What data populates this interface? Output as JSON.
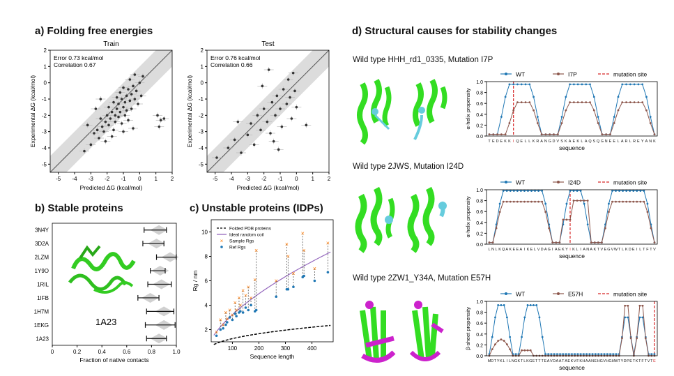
{
  "panels": {
    "a": {
      "title": "a) Folding free energies"
    },
    "b": {
      "title": "b) Stable proteins"
    },
    "c": {
      "title": "c) Unstable proteins (IDPs)"
    },
    "d": {
      "title": "d) Structural causes for stability changes"
    }
  },
  "colors": {
    "wt": "#1f77b4",
    "mut": "#8c564b",
    "mut_line": "#d62728",
    "struct_green": "#33dd22",
    "struct_cyan": "#66ccdd",
    "struct_magenta": "#cc22cc",
    "sample": "#ff7f0e",
    "ideal": "#9467bd"
  },
  "chart_data": [
    {
      "id": "a-train",
      "type": "scatter",
      "title": "Train",
      "xlabel": "Predicted ΔG (kcal/mol)",
      "ylabel": "Experimental ΔG (kcal/mol)",
      "xlim": [
        -5.5,
        2
      ],
      "ylim": [
        -5.5,
        2
      ],
      "xticks": [
        -5,
        -4,
        -3,
        -2,
        -1,
        0,
        1,
        2
      ],
      "yticks": [
        -5,
        -4,
        -3,
        -2,
        -1,
        0,
        1,
        2
      ],
      "annotations": [
        "Error 0.73 kcal/mol",
        "Correlation 0.67"
      ],
      "band_halfwidth": 1,
      "points": [
        [
          -3.4,
          -4.2
        ],
        [
          -3.0,
          -3.8
        ],
        [
          -2.8,
          -3.1
        ],
        [
          -2.6,
          -2.9
        ],
        [
          -2.5,
          -3.4
        ],
        [
          -2.4,
          -2.2
        ],
        [
          -2.3,
          -2.7
        ],
        [
          -2.2,
          -3.0
        ],
        [
          -2.1,
          -2.4
        ],
        [
          -2.0,
          -2.0
        ],
        [
          -1.9,
          -2.6
        ],
        [
          -1.9,
          -1.5
        ],
        [
          -1.8,
          -2.2
        ],
        [
          -1.7,
          -1.8
        ],
        [
          -1.6,
          -2.9
        ],
        [
          -1.6,
          -1.2
        ],
        [
          -1.5,
          -2.0
        ],
        [
          -1.5,
          -2.4
        ],
        [
          -1.4,
          -1.6
        ],
        [
          -1.4,
          -0.9
        ],
        [
          -1.3,
          -2.1
        ],
        [
          -1.3,
          -1.3
        ],
        [
          -1.2,
          -1.8
        ],
        [
          -1.2,
          -0.6
        ],
        [
          -1.1,
          -2.5
        ],
        [
          -1.1,
          -1.0
        ],
        [
          -1.0,
          -1.5
        ],
        [
          -1.0,
          -0.3
        ],
        [
          -0.9,
          -2.0
        ],
        [
          -0.9,
          -1.2
        ],
        [
          -0.8,
          -0.8
        ],
        [
          -0.8,
          -1.7
        ],
        [
          -0.7,
          -0.4
        ],
        [
          -0.7,
          -2.3
        ],
        [
          -0.6,
          -1.1
        ],
        [
          -0.6,
          0.2
        ],
        [
          -0.5,
          -0.7
        ],
        [
          -0.5,
          -1.6
        ],
        [
          -0.4,
          -0.2
        ],
        [
          -0.3,
          -1.0
        ],
        [
          -0.3,
          0.5
        ],
        [
          -0.2,
          -0.5
        ],
        [
          -0.1,
          -1.3
        ],
        [
          0.0,
          0.0
        ],
        [
          0.1,
          -0.8
        ],
        [
          0.2,
          0.4
        ],
        [
          -2.7,
          -1.6
        ],
        [
          -2.1,
          -3.6
        ],
        [
          -1.7,
          -3.3
        ],
        [
          -3.2,
          -2.6
        ],
        [
          -0.4,
          -2.8
        ],
        [
          -1.0,
          -3.0
        ],
        [
          -2.4,
          -1.0
        ],
        [
          1.1,
          -2.0
        ],
        [
          1.3,
          -2.3
        ],
        [
          1.2,
          -2.7
        ],
        [
          1.5,
          -2.2
        ]
      ]
    },
    {
      "id": "a-test",
      "type": "scatter",
      "title": "Test",
      "xlabel": "Predicted ΔG (kcal/mol)",
      "ylabel": "Experimental ΔG (kcal/mol)",
      "xlim": [
        -5.5,
        2
      ],
      "ylim": [
        -5.5,
        2
      ],
      "xticks": [
        -5,
        -4,
        -3,
        -2,
        -1,
        0,
        1,
        2
      ],
      "yticks": [
        -5,
        -4,
        -3,
        -2,
        -1,
        0,
        1,
        2
      ],
      "annotations": [
        "Error 0.76 kcal/mol",
        "Correlation 0.66"
      ],
      "band_halfwidth": 1,
      "points": [
        [
          -4.9,
          -4.6
        ],
        [
          -4.2,
          -4.0
        ],
        [
          -3.8,
          -3.5
        ],
        [
          -3.4,
          -4.3
        ],
        [
          -3.0,
          -3.2
        ],
        [
          -2.8,
          -2.5
        ],
        [
          -2.6,
          -3.8
        ],
        [
          -2.4,
          -2.0
        ],
        [
          -2.2,
          -2.9
        ],
        [
          -2.0,
          -1.6
        ],
        [
          -1.8,
          -2.4
        ],
        [
          -1.6,
          -3.1
        ],
        [
          -1.5,
          -1.2
        ],
        [
          -1.3,
          -2.0
        ],
        [
          -1.2,
          -0.8
        ],
        [
          -1.0,
          -1.6
        ],
        [
          -0.9,
          -2.7
        ],
        [
          -0.8,
          -0.4
        ],
        [
          -0.6,
          -1.3
        ],
        [
          -0.5,
          0.2
        ],
        [
          -0.4,
          -0.9
        ],
        [
          -0.3,
          -2.2
        ],
        [
          -0.2,
          0.6
        ],
        [
          -0.1,
          -0.5
        ],
        [
          0.0,
          -1.5
        ],
        [
          -2.1,
          -0.2
        ],
        [
          -1.7,
          0.8
        ],
        [
          -1.4,
          -3.6
        ],
        [
          0.6,
          -2.6
        ],
        [
          -3.6,
          -2.4
        ],
        [
          -1.1,
          -4.1
        ]
      ]
    },
    {
      "id": "b",
      "type": "bar",
      "title": "",
      "xlabel": "Fraction of native contacts",
      "ylabel": "",
      "xlim": [
        0,
        1.0
      ],
      "xticks": [
        0,
        0.2,
        0.4,
        0.6,
        0.8,
        1.0
      ],
      "categories": [
        "3N4Y",
        "3D2A",
        "2LZM",
        "1Y9O",
        "1RIL",
        "1IFB",
        "1H7M",
        "1EKG",
        "1A23"
      ],
      "ranges": [
        [
          0.74,
          0.92
        ],
        [
          0.73,
          0.9
        ],
        [
          0.84,
          1.0
        ],
        [
          0.79,
          0.91
        ],
        [
          0.77,
          0.96
        ],
        [
          0.69,
          0.86
        ],
        [
          0.76,
          0.98
        ],
        [
          0.75,
          0.99
        ],
        [
          0.76,
          0.92
        ]
      ],
      "means": [
        0.86,
        0.84,
        0.95,
        0.87,
        0.88,
        0.79,
        0.9,
        0.9,
        0.86
      ],
      "structure_label": "1A23"
    },
    {
      "id": "c",
      "type": "scatter",
      "title": "",
      "xlabel": "Sequence length",
      "ylabel": "Rg / nm",
      "xlim": [
        20,
        480
      ],
      "ylim": [
        1,
        11
      ],
      "xticks": [
        100,
        200,
        300,
        400
      ],
      "yticks": [
        2,
        4,
        6,
        8,
        10
      ],
      "legend": [
        "Folded PDB proteins",
        "Ideal random coil",
        "Sample Rgs",
        "Ref Rgs"
      ],
      "legend_position": "top-left",
      "pairs": [
        [
          40,
          1.8,
          1.5
        ],
        [
          55,
          2.8,
          2.0
        ],
        [
          65,
          2.4,
          2.1
        ],
        [
          75,
          3.4,
          2.4
        ],
        [
          80,
          2.9,
          2.6
        ],
        [
          90,
          3.6,
          3.0
        ],
        [
          100,
          3.2,
          2.8
        ],
        [
          110,
          4.2,
          3.3
        ],
        [
          115,
          3.6,
          3.1
        ],
        [
          125,
          4.6,
          3.4
        ],
        [
          130,
          4.0,
          3.5
        ],
        [
          140,
          5.2,
          3.4
        ],
        [
          150,
          4.8,
          3.8
        ],
        [
          160,
          5.5,
          3.6
        ],
        [
          170,
          4.6,
          4.0
        ],
        [
          185,
          6.1,
          3.5
        ],
        [
          190,
          8.5,
          3.6
        ],
        [
          265,
          6.0,
          4.7
        ],
        [
          305,
          9.0,
          5.3
        ],
        [
          310,
          8.0,
          5.3
        ],
        [
          330,
          6.6,
          5.5
        ],
        [
          365,
          9.9,
          6.3
        ],
        [
          370,
          8.5,
          6.4
        ],
        [
          410,
          7.0,
          6.0
        ],
        [
          460,
          9.1,
          6.7
        ]
      ]
    },
    {
      "id": "d1",
      "type": "line",
      "title": "",
      "xlabel": "sequence",
      "ylabel": "α-helix propensity",
      "ylim": [
        0,
        1.0
      ],
      "yticks": [
        0.0,
        0.2,
        0.4,
        0.6,
        0.8,
        1.0
      ],
      "legend": [
        "WT",
        "I7P",
        "mutation site"
      ],
      "legend_position": "top",
      "sequence_labels": "TEDEKKIQELLKRANGDVSKAEKLAQSQGNEELARLREYANK",
      "mutation_index": 6
    },
    {
      "id": "d2",
      "type": "line",
      "title": "",
      "xlabel": "sequence",
      "ylabel": "α-helix propensity",
      "ylim": [
        0,
        1.0
      ],
      "yticks": [
        0.0,
        0.2,
        0.4,
        0.6,
        0.8,
        1.0
      ],
      "legend": [
        "WT",
        "I24D",
        "mutation site"
      ],
      "legend_position": "top",
      "sequence_labels": "LNLKQAKEEAIKELVDAGIAEKYIKLIANAKTVEGVWTLKDEILTFTV",
      "mutation_index": 23
    },
    {
      "id": "d3",
      "type": "line",
      "title": "",
      "xlabel": "sequence",
      "ylabel": "β-sheet propensity",
      "ylim": [
        0,
        1.0
      ],
      "yticks": [
        0.0,
        0.2,
        0.4,
        0.6,
        0.8,
        1.0
      ],
      "legend": [
        "WT",
        "E57H",
        "mutation site"
      ],
      "legend_position": "top",
      "sequence_labels": "MDTYKLILNGKTLKGETTTEAVDAATAEKVFKHAANEHGVHGHWTYDPETKTFTVTE",
      "mutation_index": 56
    }
  ],
  "d_rows": [
    {
      "label": "Wild type HHH_rd1_0335, Mutation I7P"
    },
    {
      "label": "Wild type 2JWS, Mutation I24D"
    },
    {
      "label": "Wild type 2ZW1_Y34A, Mutation E57H"
    }
  ]
}
